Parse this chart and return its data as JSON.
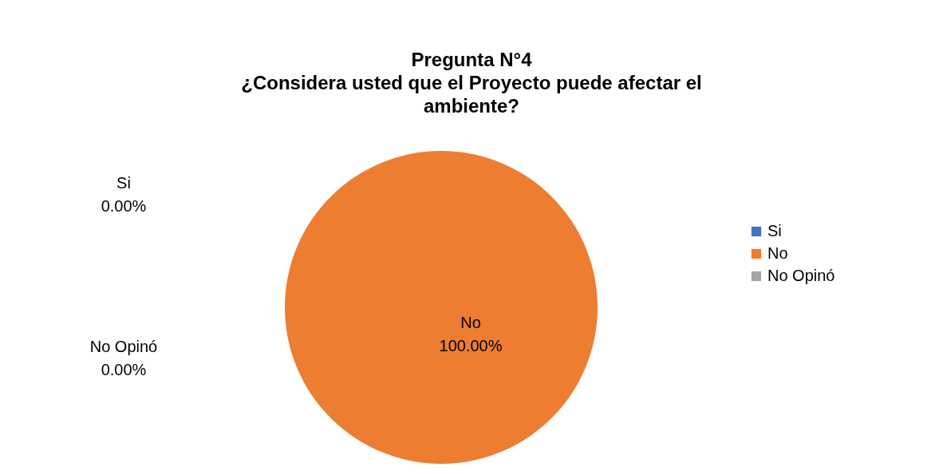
{
  "chart_data": {
    "type": "pie",
    "title": "Pregunta N°4\n¿Considera usted que el Proyecto puede afectar el\nambiente?",
    "categories": [
      "Si",
      "No",
      "No Opinó"
    ],
    "values": [
      0,
      100,
      0
    ],
    "value_labels": [
      "0.00%",
      "100.00%",
      "0.00%"
    ],
    "colors": [
      "#4472c4",
      "#ed7d31",
      "#a5a5a5"
    ],
    "legend": "right"
  }
}
